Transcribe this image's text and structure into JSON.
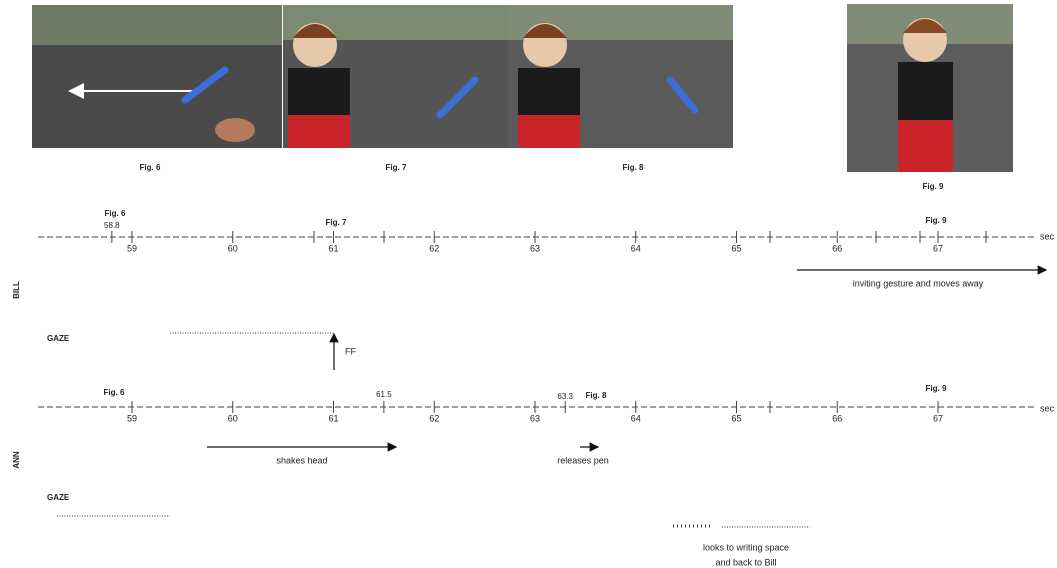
{
  "figures": [
    {
      "caption": "Fig. 6"
    },
    {
      "caption": "Fig. 7"
    },
    {
      "caption": "Fig. 8"
    },
    {
      "caption": "Fig. 9"
    }
  ],
  "participants": [
    {
      "name": "BILL",
      "ticks": [
        59,
        60,
        61,
        62,
        63,
        64,
        65,
        66,
        67
      ],
      "unit": "sec",
      "marked_times": [
        58.8
      ],
      "markers": [
        "Fig. 6",
        "Fig. 7",
        "Fig. 9"
      ],
      "events": [
        "inviting gesture and moves away"
      ],
      "gaze_label": "GAZE",
      "gaze_note": "FF"
    },
    {
      "name": "ANN",
      "ticks": [
        59,
        60,
        61,
        62,
        63,
        64,
        65,
        66,
        67
      ],
      "unit": "sec",
      "marked_times": [
        61.5,
        63.3
      ],
      "markers": [
        "Fig. 6",
        "Fig. 8",
        "Fig. 9"
      ],
      "events": [
        "shakes head",
        "releases pen"
      ],
      "gaze_label": "GAZE",
      "gaze_note_lines": [
        "looks to writing space",
        "and back to Bill"
      ]
    }
  ]
}
